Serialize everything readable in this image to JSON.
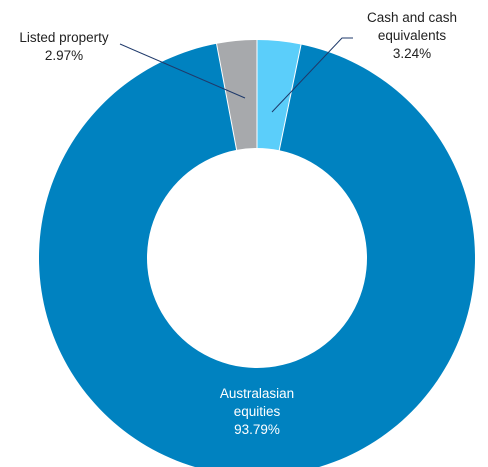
{
  "chart_data": {
    "type": "pie",
    "variant": "donut",
    "slices": [
      {
        "name": "Cash and cash equivalents",
        "label_lines": [
          "Cash and cash",
          "equivalents"
        ],
        "value_label": "3.24%",
        "value": 3.24,
        "color": "#5bcefa",
        "label_color": "#222222"
      },
      {
        "name": "Australasian equities",
        "label_lines": [
          "Australasian",
          "equities"
        ],
        "value_label": "93.79%",
        "value": 93.79,
        "color": "#0082c0",
        "label_color": "#ffffff"
      },
      {
        "name": "Listed property",
        "label_lines": [
          "Listed  property"
        ],
        "value_label": "2.97%",
        "value": 2.97,
        "color": "#a7a9ac",
        "label_color": "#222222"
      }
    ]
  }
}
